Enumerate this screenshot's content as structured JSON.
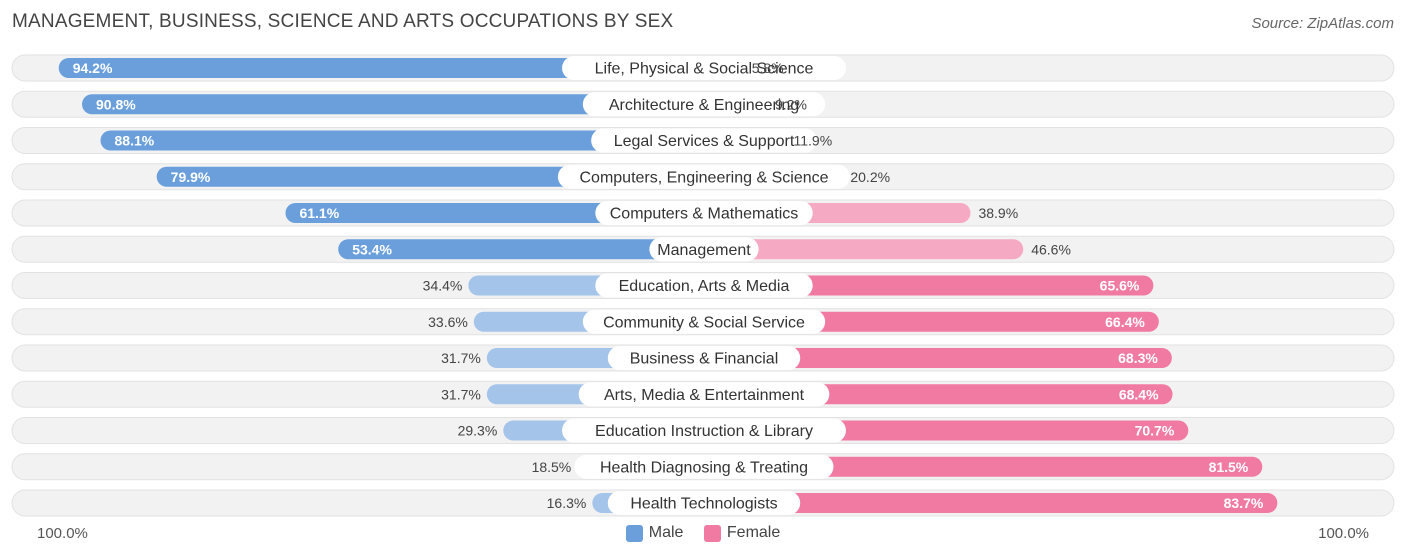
{
  "header": {
    "title": "MANAGEMENT, BUSINESS, SCIENCE AND ARTS OCCUPATIONS BY SEX",
    "source": "Source: ZipAtlas.com"
  },
  "axis": {
    "left_label": "100.0%",
    "right_label": "100.0%"
  },
  "legend": {
    "male": "Male",
    "female": "Female"
  },
  "colors": {
    "male_dark": "#6a9fdc",
    "male_light": "#a4c4ea",
    "female_dark": "#f07aa2",
    "female_light": "#f6a9c3",
    "track": "#f0f0f0"
  },
  "chart_data": {
    "type": "bar",
    "orientation": "horizontal-diverging",
    "title": "MANAGEMENT, BUSINESS, SCIENCE AND ARTS OCCUPATIONS BY SEX",
    "xlim": [
      -100,
      100
    ],
    "categories": [
      "Life, Physical & Social Science",
      "Architecture & Engineering",
      "Legal Services & Support",
      "Computers, Engineering & Science",
      "Computers & Mathematics",
      "Management",
      "Education, Arts & Media",
      "Community & Social Service",
      "Business & Financial",
      "Arts, Media & Entertainment",
      "Education Instruction & Library",
      "Health Diagnosing & Treating",
      "Health Technologists"
    ],
    "series": [
      {
        "name": "Male",
        "values": [
          94.2,
          90.8,
          88.1,
          79.9,
          61.1,
          53.4,
          34.4,
          33.6,
          31.7,
          31.7,
          29.3,
          18.5,
          16.3
        ],
        "labels": [
          "94.2%",
          "90.8%",
          "88.1%",
          "79.9%",
          "61.1%",
          "53.4%",
          "34.4%",
          "33.6%",
          "31.7%",
          "31.7%",
          "29.3%",
          "18.5%",
          "16.3%"
        ]
      },
      {
        "name": "Female",
        "values": [
          5.8,
          9.2,
          11.9,
          20.2,
          38.9,
          46.6,
          65.6,
          66.4,
          68.3,
          68.4,
          70.7,
          81.5,
          83.7
        ],
        "labels": [
          "5.8%",
          "9.2%",
          "11.9%",
          "20.2%",
          "38.9%",
          "46.6%",
          "65.6%",
          "66.4%",
          "68.3%",
          "68.4%",
          "70.7%",
          "81.5%",
          "83.7%"
        ]
      }
    ]
  }
}
